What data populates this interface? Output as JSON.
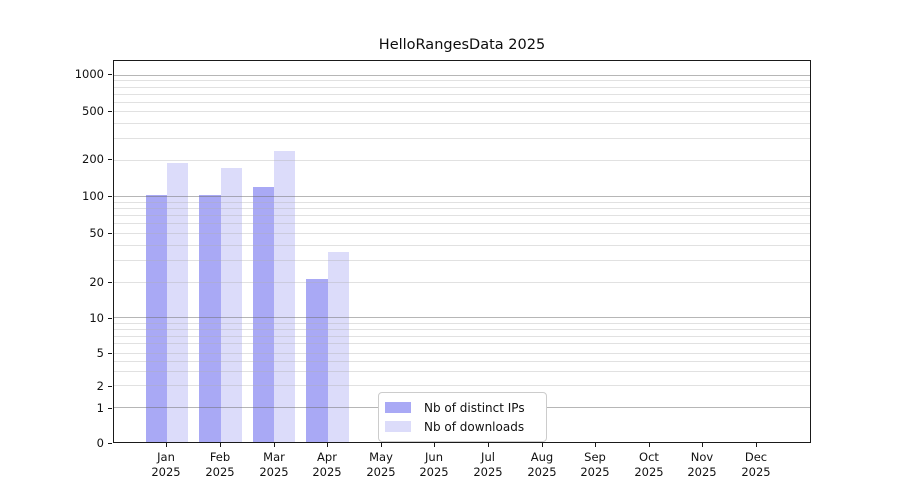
{
  "chart_data": {
    "type": "bar",
    "title": "HelloRangesData 2025",
    "categories": [
      "Jan",
      "Feb",
      "Mar",
      "Apr",
      "May",
      "Jun",
      "Jul",
      "Aug",
      "Sep",
      "Oct",
      "Nov",
      "Dec"
    ],
    "x_sublabel": "2025",
    "series": [
      {
        "name": "Nb of distinct IPs",
        "color": "#a9a9f5",
        "values": [
          103,
          103,
          120,
          21,
          0,
          0,
          0,
          0,
          0,
          0,
          0,
          0
        ]
      },
      {
        "name": "Nb of downloads",
        "color": "#dcdcfa",
        "values": [
          190,
          170,
          235,
          35,
          0,
          0,
          0,
          0,
          0,
          0,
          0,
          0
        ]
      }
    ],
    "y_axis": {
      "scale": "symlog",
      "tick_labels": [
        "1000",
        "500",
        "200",
        "100",
        "50",
        "20",
        "10",
        "5",
        "2",
        "1",
        "0"
      ],
      "major_ticks": [
        1000,
        500,
        200,
        100,
        50,
        20,
        10,
        5,
        2,
        1,
        0
      ],
      "decade_gridlines": [
        1000,
        100,
        10,
        1
      ],
      "minor_gridlines": [
        900,
        800,
        700,
        600,
        400,
        300,
        90,
        80,
        70,
        60,
        40,
        30,
        9,
        8,
        7,
        6,
        4,
        3
      ],
      "ylim_bottom": 0
    },
    "legend": {
      "position": "lower-center"
    },
    "grid": true
  }
}
